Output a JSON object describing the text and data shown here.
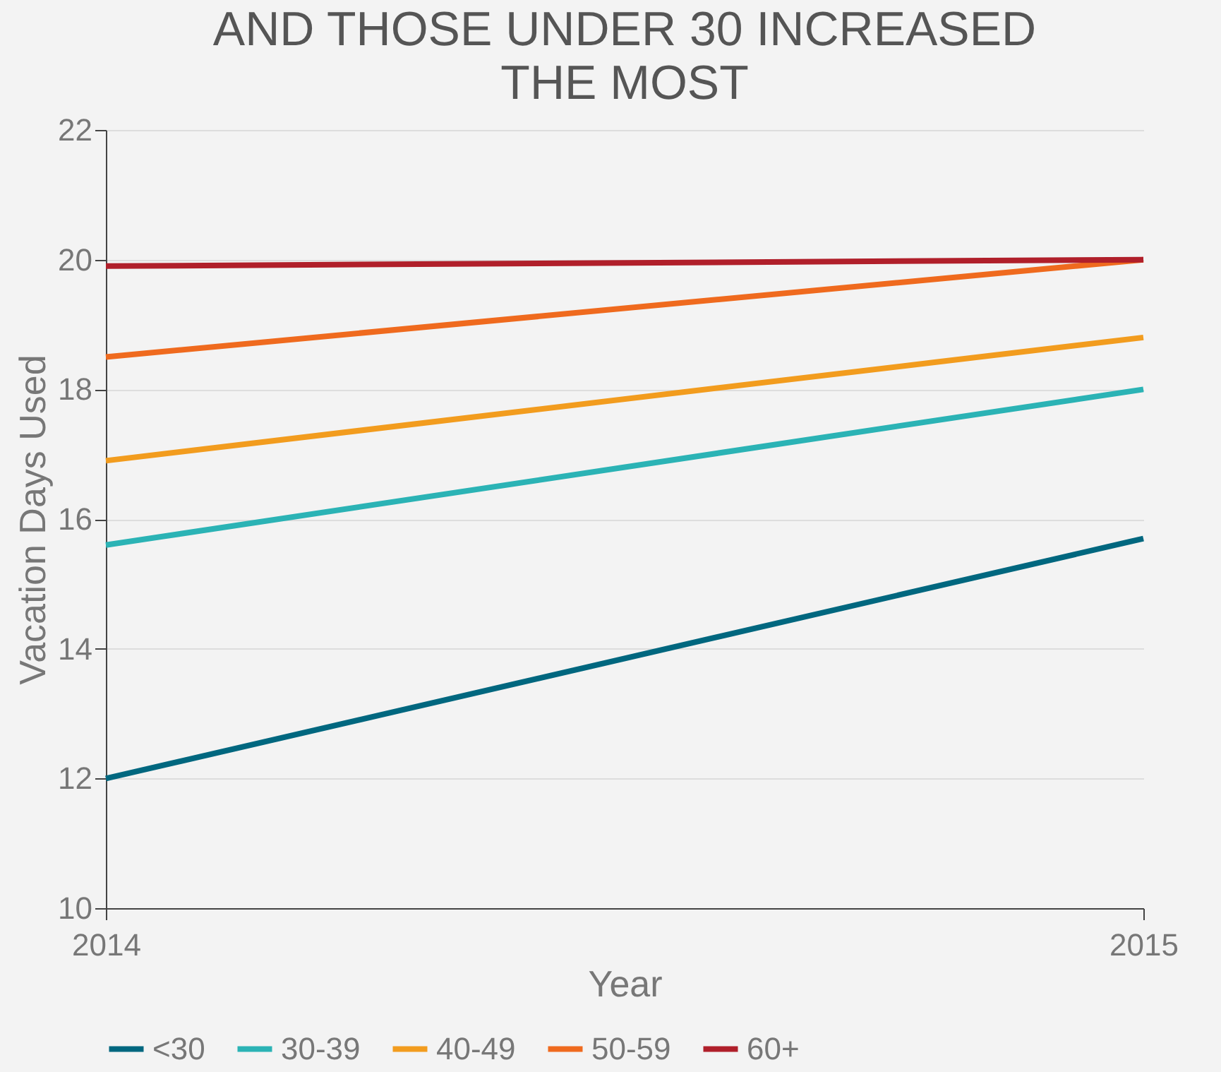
{
  "chart_data": {
    "type": "line",
    "title": "AND THOSE UNDER 30 INCREASED THE MOST",
    "xlabel": "Year",
    "ylabel": "Vacation Days Used",
    "x": [
      2014,
      2015
    ],
    "xlim": [
      2014,
      2015
    ],
    "xticks": [
      2014,
      2015
    ],
    "ylim": [
      10,
      22
    ],
    "yticks": [
      10,
      12,
      14,
      16,
      18,
      20,
      22
    ],
    "series": [
      {
        "name": "<30",
        "color": "#00677f",
        "values": [
          12.0,
          15.7
        ]
      },
      {
        "name": "30-39",
        "color": "#2bb3b5",
        "values": [
          15.6,
          18.0
        ]
      },
      {
        "name": "40-49",
        "color": "#f29c1e",
        "values": [
          16.9,
          18.8
        ]
      },
      {
        "name": "50-59",
        "color": "#ef6a1e",
        "values": [
          18.5,
          20.0
        ]
      },
      {
        "name": "60+",
        "color": "#b01f2a",
        "values": [
          19.9,
          20.0
        ]
      }
    ],
    "grid": "y",
    "legend": "bottom",
    "marker": "none",
    "line_style": "solid"
  }
}
